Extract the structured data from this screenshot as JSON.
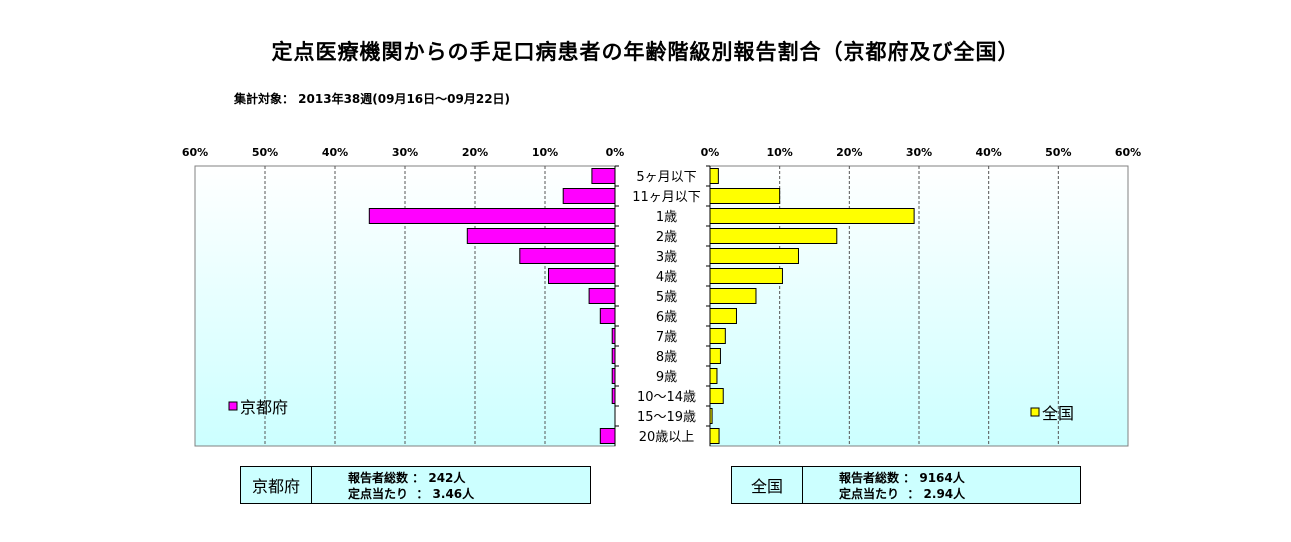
{
  "title": "定点医療機関からの手足口病患者の年齢階級別報告割合（京都府及び全国）",
  "subtitle": "集計対象：  2013年38週(09月16日～09月22日)",
  "colors": {
    "kyoto": "#ff00ff",
    "national": "#ffff00",
    "plot_bg_top": "#ffffff",
    "plot_bg_bottom": "#ccffff"
  },
  "chart_data": {
    "type": "bar",
    "orientation": "horizontal-butterfly",
    "categories": [
      "5ヶ月以下",
      "11ヶ月以下",
      "1歳",
      "2歳",
      "3歳",
      "4歳",
      "5歳",
      "6歳",
      "7歳",
      "8歳",
      "9歳",
      "10～14歳",
      "15～19歳",
      "20歳以上"
    ],
    "series": [
      {
        "name": "京都府",
        "values": [
          3.3,
          7.4,
          35.1,
          21.1,
          13.6,
          9.5,
          3.7,
          2.1,
          0.4,
          0.4,
          0.4,
          0.4,
          0,
          2.1
        ]
      },
      {
        "name": "全国",
        "values": [
          1.2,
          10.0,
          29.3,
          18.2,
          12.7,
          10.4,
          6.6,
          3.8,
          2.2,
          1.5,
          1.0,
          1.9,
          0.3,
          1.3
        ]
      }
    ],
    "xlim": [
      0,
      60
    ],
    "ticks": [
      "60%",
      "50%",
      "40%",
      "30%",
      "20%",
      "10%",
      "0%"
    ],
    "ticks_right": [
      "0%",
      "10%",
      "20%",
      "30%",
      "40%",
      "50%",
      "60%"
    ],
    "grid": true,
    "legend_left": "京都府",
    "legend_right": "全国"
  },
  "info_kyoto": {
    "region": "京都府",
    "reporters": "報告者総数 ： 242人",
    "per_point": "定点当たり  ： 3.46人"
  },
  "info_national": {
    "region": "全国",
    "reporters": "報告者総数 ： 9164人",
    "per_point": "定点当たり  ： 2.94人"
  }
}
